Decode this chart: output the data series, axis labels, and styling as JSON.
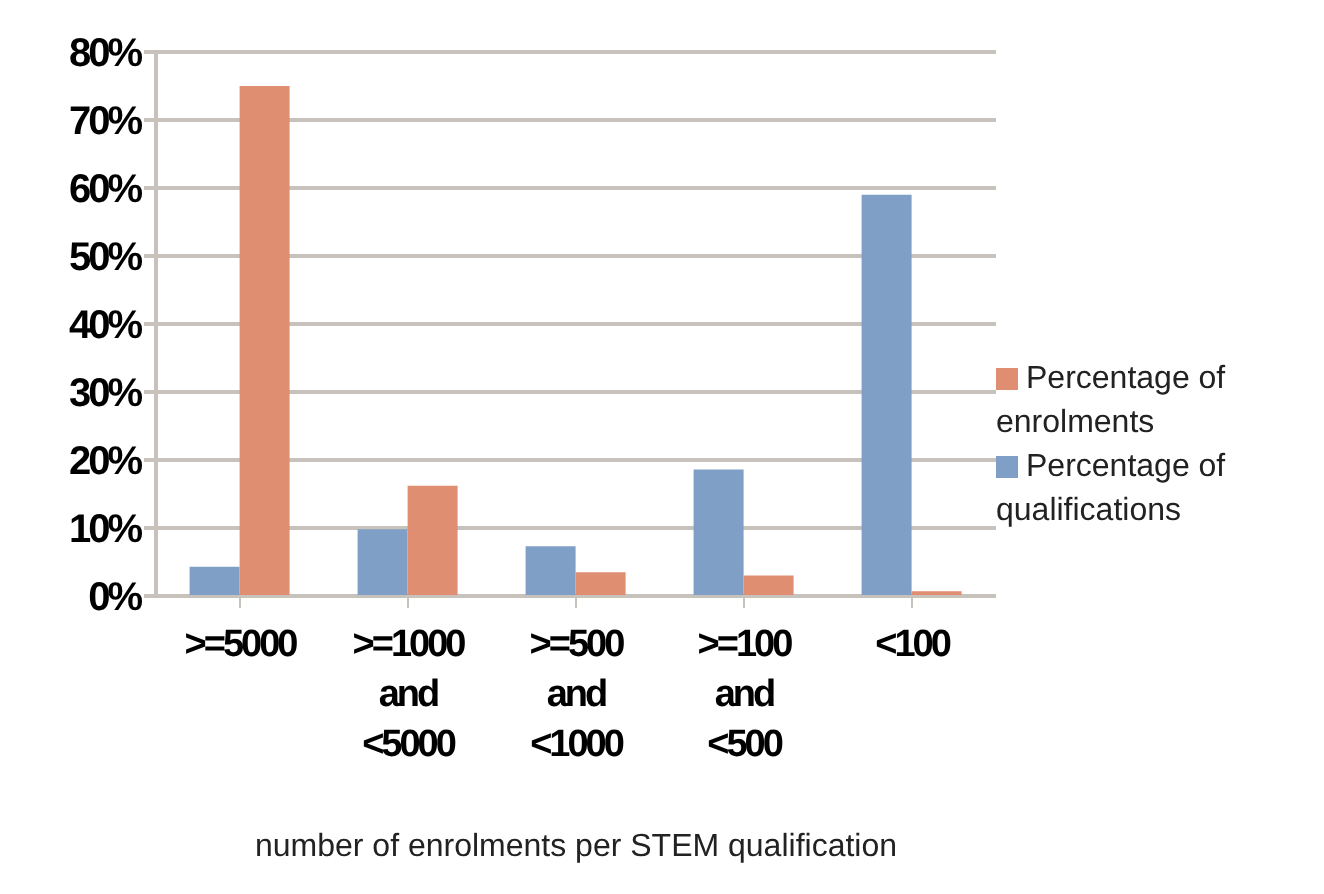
{
  "chart_data": {
    "type": "bar",
    "xlabel": "number of enrolments per STEM qualification",
    "categories": [
      ">=5000",
      ">=1000 and <5000",
      ">=500 and <1000",
      ">=100 and <500",
      "<100"
    ],
    "series": [
      {
        "name": "Percentage of qualifications",
        "color": "#7f9fc6",
        "values": [
          4.3,
          9.8,
          7.3,
          18.6,
          59
        ]
      },
      {
        "name": "Percentage of enrolments",
        "color": "#e08e72",
        "values": [
          75,
          16.2,
          3.5,
          3,
          0.7
        ]
      }
    ],
    "ylim": [
      0,
      80
    ],
    "yticks": [
      {
        "value": 0,
        "label": "0%"
      },
      {
        "value": 10,
        "label": "10%"
      },
      {
        "value": 20,
        "label": "20%"
      },
      {
        "value": 30,
        "label": "30%"
      },
      {
        "value": 40,
        "label": "40%"
      },
      {
        "value": 50,
        "label": "50%"
      },
      {
        "value": 60,
        "label": "60%"
      },
      {
        "value": 70,
        "label": "70%"
      },
      {
        "value": 80,
        "label": "80%"
      }
    ],
    "grid": "y",
    "legend": "right"
  }
}
